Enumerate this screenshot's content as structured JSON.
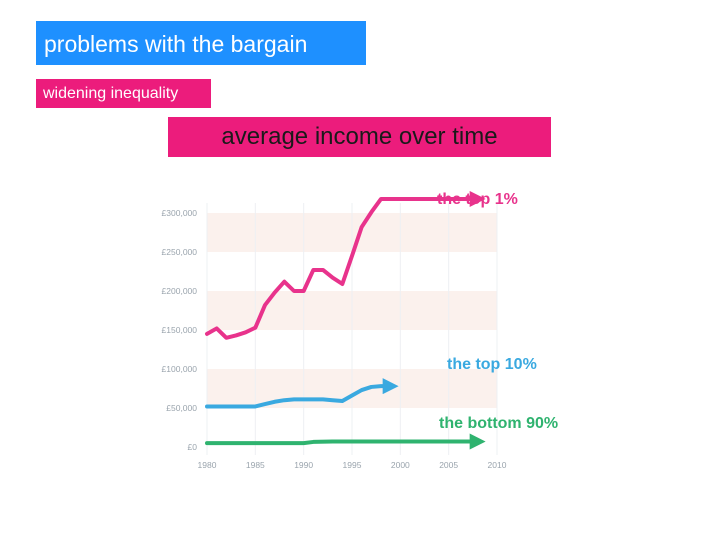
{
  "slide": {
    "title": "problems with the bargain",
    "subtitle": "widening inequality",
    "heading": "average income over time"
  },
  "colors": {
    "title_bg": "#1e90ff",
    "accent_bg": "#ec1c7c",
    "band": "#fbf1ed",
    "grid": "#eef0f3"
  },
  "chart_data": {
    "type": "line",
    "x_ticks": [
      "1980",
      "1985",
      "1990",
      "1995",
      "2000",
      "2005",
      "2010"
    ],
    "y_ticks": [
      "£0",
      "£50,000",
      "£100,000",
      "£150,000",
      "£200,000",
      "£250,000",
      "£300,000"
    ],
    "xlim": [
      1980,
      2010
    ],
    "ylim": [
      0,
      300000
    ],
    "grid": true,
    "series": [
      {
        "name": "the top 1%",
        "color": "#e8338c",
        "x": [
          1980,
          1981,
          1982,
          1983,
          1984,
          1985,
          1986,
          1987,
          1988,
          1989,
          1990,
          1991,
          1992,
          1993,
          1994,
          1995,
          1996,
          1997,
          1998,
          1999,
          2000,
          2001,
          2002,
          2003,
          2004,
          2005,
          2006,
          2007,
          2008
        ],
        "y": [
          145000,
          152000,
          140000,
          143000,
          147000,
          153000,
          182000,
          198000,
          212000,
          200000,
          200000,
          227000,
          227000,
          217000,
          209000,
          245000,
          282000,
          301000,
          318000,
          318000,
          318000,
          318000,
          318000,
          318000,
          318000,
          318000,
          318000,
          318000,
          318000
        ]
      },
      {
        "name": "the top 10%",
        "color": "#3aa9e0",
        "x": [
          1980,
          1981,
          1982,
          1983,
          1984,
          1985,
          1986,
          1987,
          1988,
          1989,
          1990,
          1991,
          1992,
          1993,
          1994,
          1995,
          1996,
          1997,
          1998,
          1999
        ],
        "y": [
          52000,
          52000,
          52000,
          52000,
          52000,
          52000,
          55000,
          58000,
          60000,
          61000,
          61000,
          61000,
          61000,
          60000,
          59000,
          66000,
          73000,
          77000,
          78000,
          78000
        ]
      },
      {
        "name": "the bottom 90%",
        "color": "#2fb36f",
        "x": [
          1980,
          1982,
          1984,
          1986,
          1988,
          1990,
          1991,
          1993,
          1995,
          1997,
          1999,
          2001,
          2003,
          2005,
          2007,
          2008
        ],
        "y": [
          5000,
          5000,
          5000,
          5000,
          5000,
          5000,
          6500,
          7000,
          7000,
          7000,
          7000,
          7000,
          7000,
          7000,
          7000,
          7000
        ]
      }
    ]
  }
}
